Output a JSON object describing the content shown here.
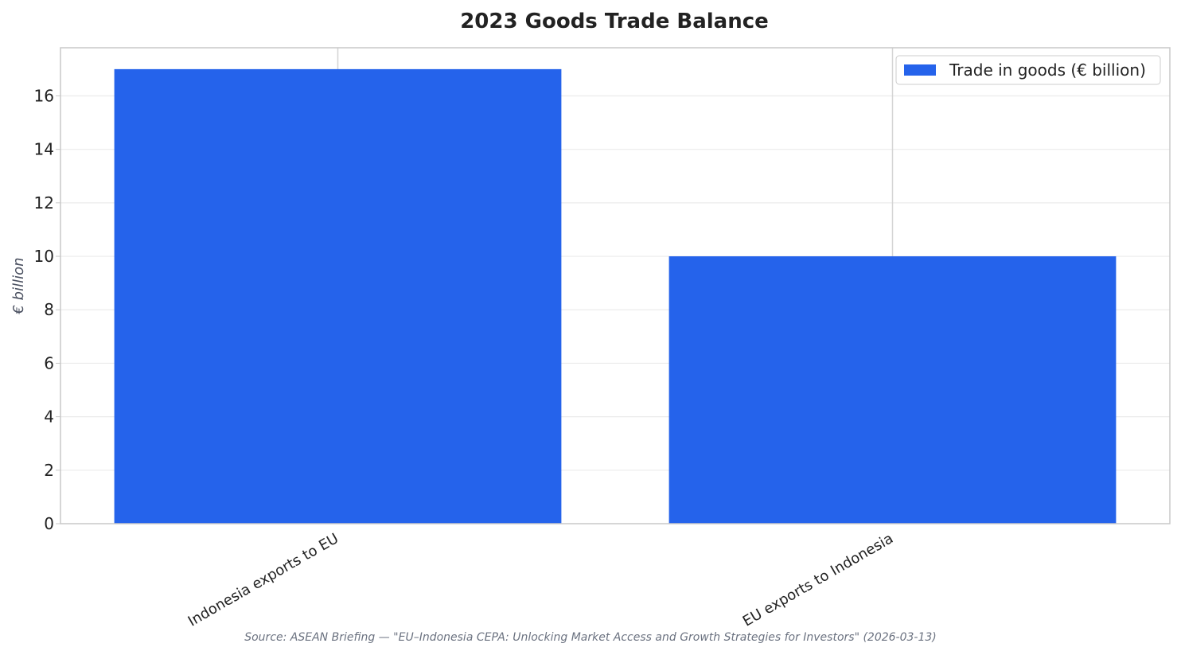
{
  "chart_data": {
    "type": "bar",
    "title": "2023 Goods Trade Balance",
    "xlabel": "",
    "ylabel": "€ billion",
    "categories": [
      "Indonesia exports to EU",
      "EU exports to Indonesia"
    ],
    "series": [
      {
        "name": "Trade in goods (€ billion)",
        "values": [
          17.0,
          10.0
        ],
        "color": "#2563eb"
      }
    ],
    "ylim": [
      0,
      17.8
    ],
    "yticks": [
      "0",
      "2",
      "4",
      "6",
      "8",
      "10",
      "12",
      "14",
      "16"
    ],
    "grid": true,
    "legend_position": "top-right",
    "source": "Source: ASEAN Briefing — \"EU–Indonesia CEPA: Unlocking Market Access and Growth Strategies for Investors\" (2026-03-13)"
  }
}
